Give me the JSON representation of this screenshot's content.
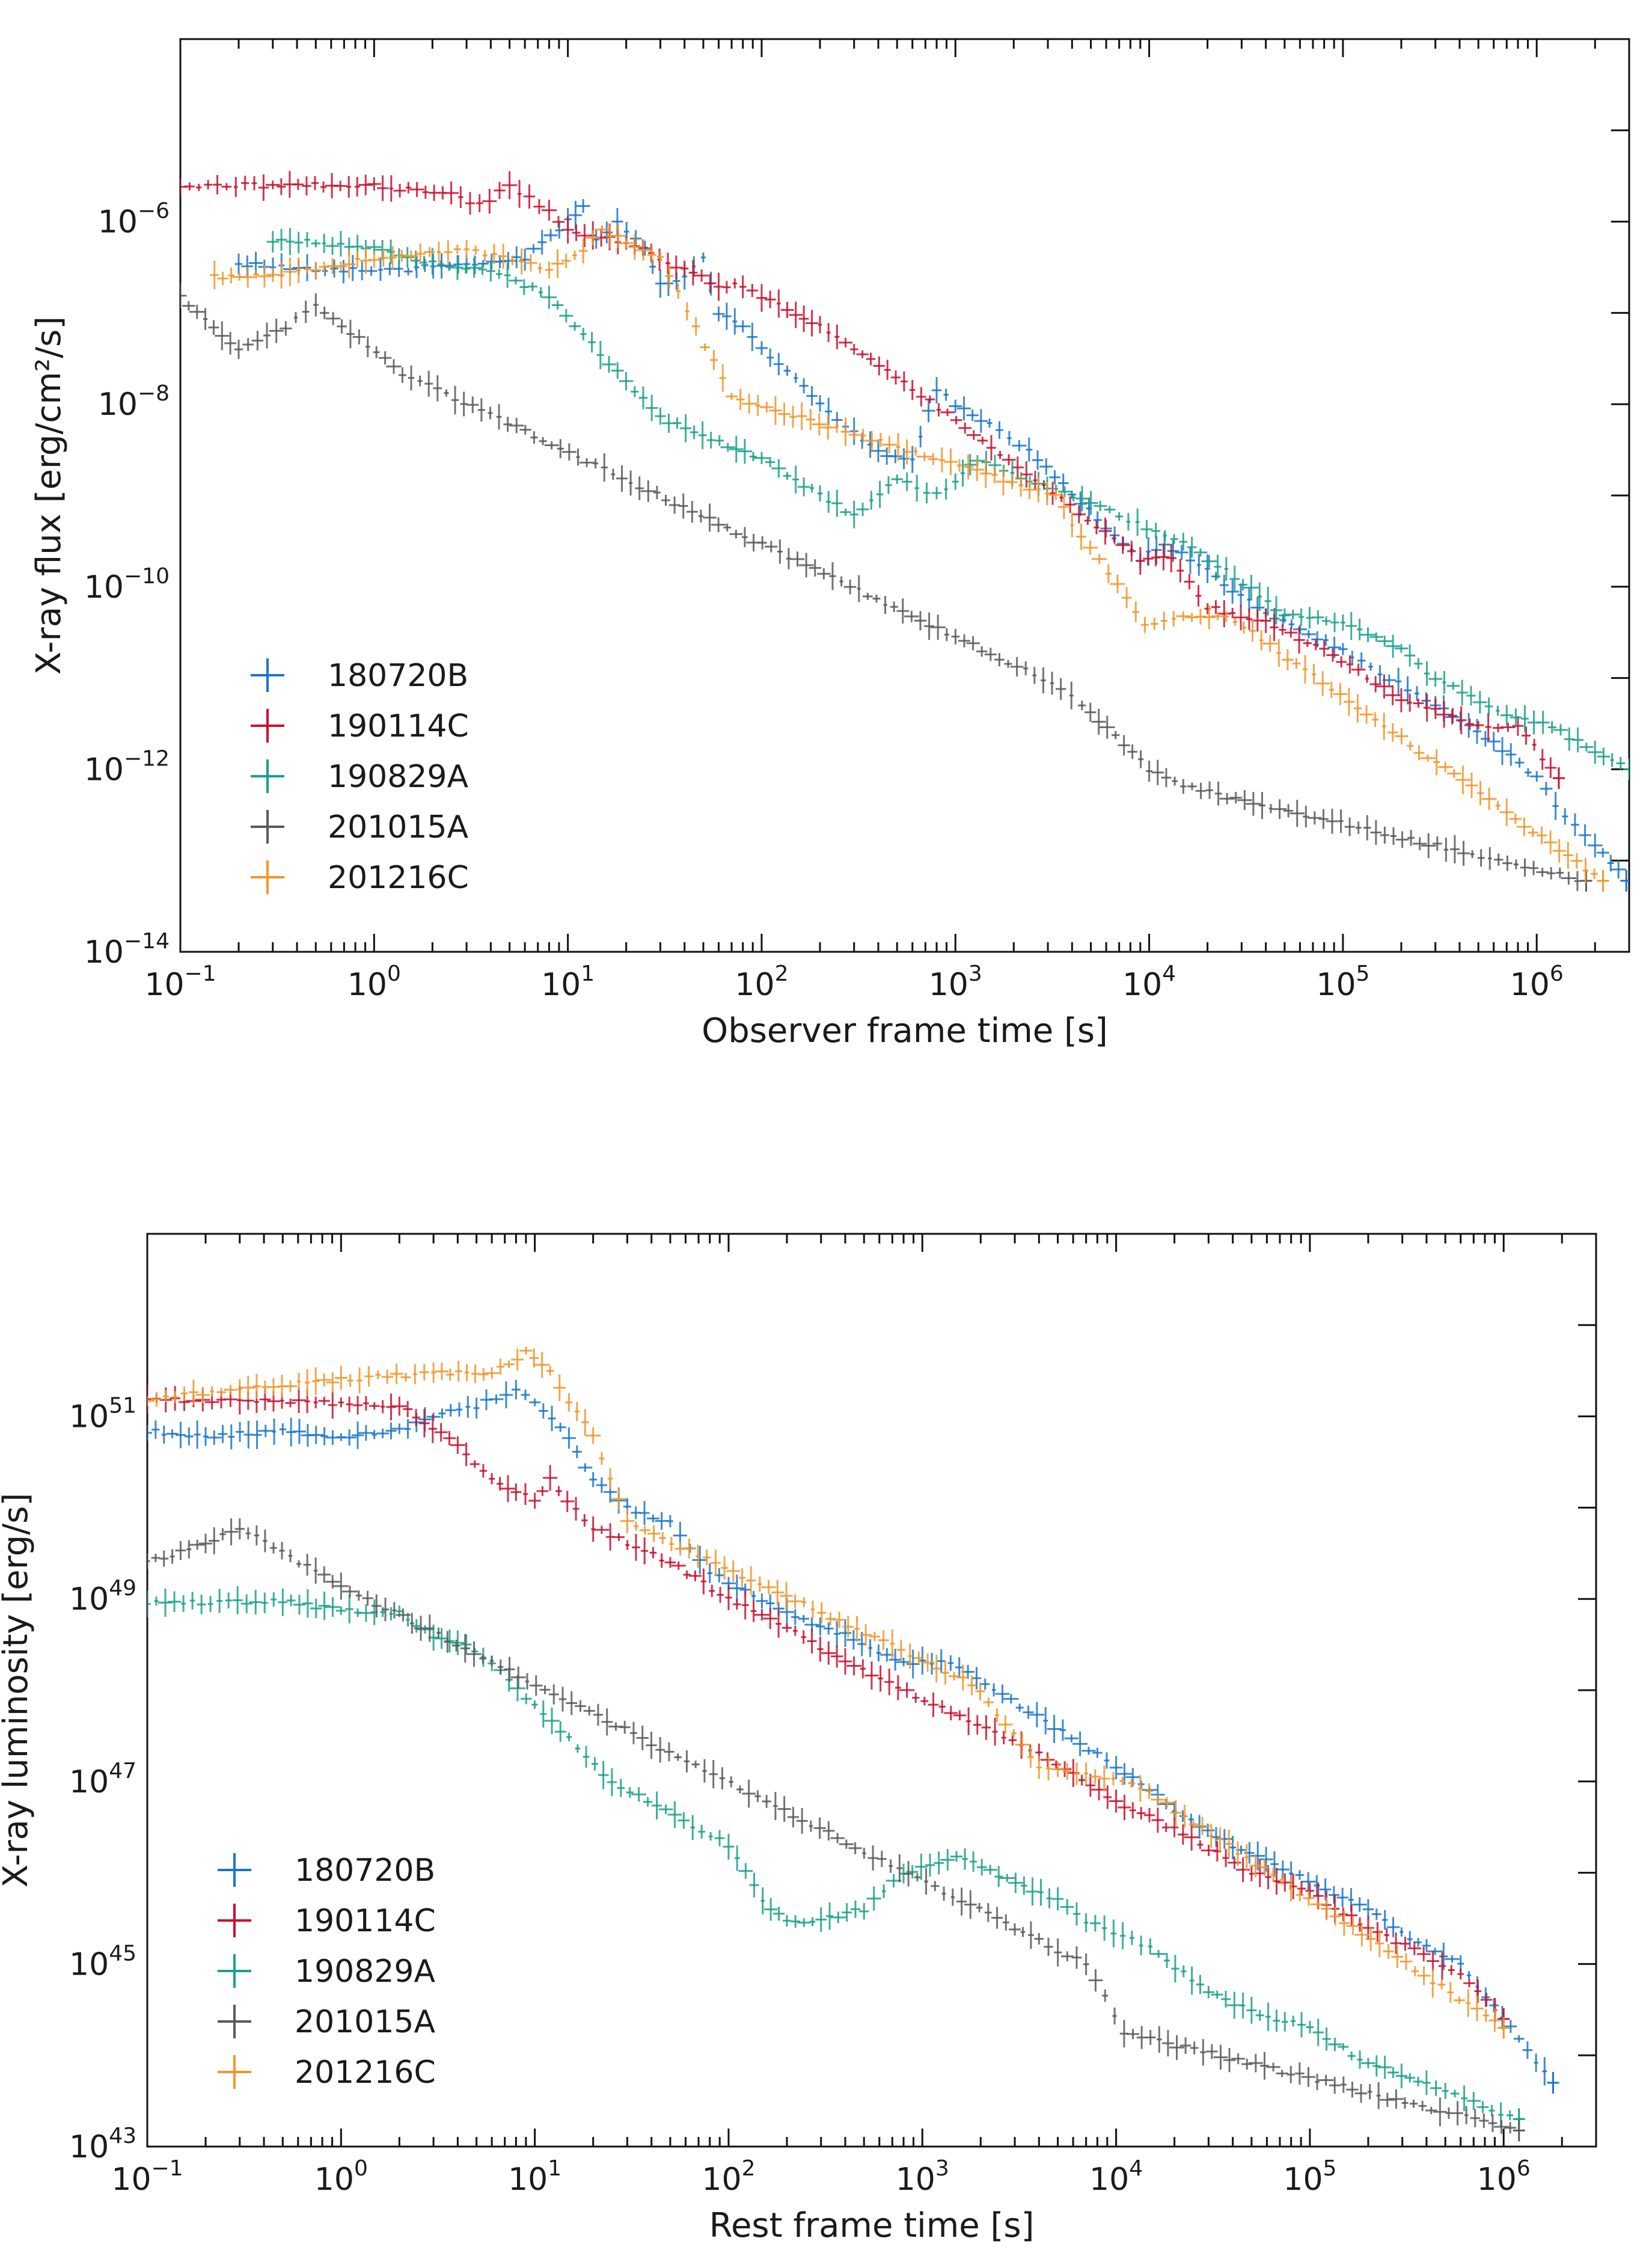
{
  "chart_data": [
    {
      "type": "scatter",
      "panel": "top",
      "xlabel": "Observer frame time [s]",
      "ylabel": "X-ray flux [erg/cm²/s]",
      "xscale": "log",
      "yscale": "log",
      "xlim": [
        0.1,
        3000000
      ],
      "ylim": [
        1e-14,
        0.0001
      ],
      "x_ticks": [
        {
          "value": 0.1,
          "base": "10",
          "exp": "−1"
        },
        {
          "value": 1,
          "base": "10",
          "exp": "0"
        },
        {
          "value": 10,
          "base": "10",
          "exp": "1"
        },
        {
          "value": 100,
          "base": "10",
          "exp": "2"
        },
        {
          "value": 1000,
          "base": "10",
          "exp": "3"
        },
        {
          "value": 10000,
          "base": "10",
          "exp": "4"
        },
        {
          "value": 100000,
          "base": "10",
          "exp": "5"
        },
        {
          "value": 1000000,
          "base": "10",
          "exp": "6"
        }
      ],
      "y_ticks": [
        {
          "value": 1e-06,
          "base": "10",
          "exp": "−6"
        },
        {
          "value": 1e-08,
          "base": "10",
          "exp": "−8"
        },
        {
          "value": 1e-10,
          "base": "10",
          "exp": "−10"
        },
        {
          "value": 1e-12,
          "base": "10",
          "exp": "−12"
        },
        {
          "value": 1e-14,
          "base": "10",
          "exp": "−14"
        }
      ],
      "legend": {
        "position": "bottom-left",
        "entries": [
          "180720B",
          "190114C",
          "190829A",
          "201015A",
          "201216C"
        ]
      },
      "series": [
        {
          "name": "180720B",
          "color": "#1a76c9",
          "points": [
            [
              0.2,
              3.5e-07
            ],
            [
              0.5,
              3e-07
            ],
            [
              1.5,
              3e-07
            ],
            [
              3,
              3.5e-07
            ],
            [
              6,
              4e-07
            ],
            [
              10,
              1e-06
            ],
            [
              12,
              1.5e-06
            ],
            [
              14,
              6e-07
            ],
            [
              18,
              1e-06
            ],
            [
              25,
              5e-07
            ],
            [
              30,
              2e-07
            ],
            [
              40,
              2.5e-07
            ],
            [
              50,
              4e-07
            ],
            [
              60,
              1e-07
            ],
            [
              80,
              7e-08
            ],
            [
              100,
              4e-08
            ],
            [
              150,
              2e-08
            ],
            [
              200,
              1e-08
            ],
            [
              300,
              5e-09
            ],
            [
              400,
              3e-09
            ],
            [
              600,
              2.5e-09
            ],
            [
              800,
              1.5e-08
            ],
            [
              1000,
              1e-08
            ],
            [
              1500,
              6e-09
            ],
            [
              2400,
              3e-09
            ],
            [
              9000,
              2e-10
            ],
            [
              12000,
              3e-10
            ],
            [
              20000,
              1.5e-10
            ],
            [
              40000,
              5e-11
            ],
            [
              100000,
              2e-11
            ],
            [
              300000,
              5e-12
            ],
            [
              600000,
              2e-12
            ],
            [
              1000000,
              8e-13
            ],
            [
              1400000,
              3e-13
            ],
            [
              2000000,
              1.5e-13
            ],
            [
              2900000,
              6e-14
            ]
          ]
        },
        {
          "name": "190114C",
          "color": "#c8102e",
          "points": [
            [
              0.1,
              2.5e-06
            ],
            [
              0.3,
              2.5e-06
            ],
            [
              1,
              2.5e-06
            ],
            [
              2.5,
              2e-06
            ],
            [
              3.5,
              1.5e-06
            ],
            [
              5,
              2.5e-06
            ],
            [
              8,
              1.3e-06
            ],
            [
              10,
              8e-07
            ],
            [
              20,
              6e-07
            ],
            [
              40,
              3e-07
            ],
            [
              60,
              2e-07
            ],
            [
              80,
              2e-07
            ],
            [
              100,
              1.5e-07
            ],
            [
              150,
              1e-07
            ],
            [
              200,
              7e-08
            ],
            [
              300,
              4e-08
            ],
            [
              600,
              1.5e-08
            ],
            [
              9000,
              2e-10
            ],
            [
              13000,
              2e-10
            ],
            [
              20000,
              6e-11
            ],
            [
              40000,
              4e-11
            ],
            [
              80000,
              2e-11
            ],
            [
              200000,
              6e-12
            ],
            [
              500000,
              3e-12
            ],
            [
              800000,
              3e-12
            ],
            [
              1300000,
              8e-13
            ]
          ]
        },
        {
          "name": "190829A",
          "color": "#1aa08a",
          "points": [
            [
              0.3,
              6e-07
            ],
            [
              0.5,
              6e-07
            ],
            [
              1,
              5e-07
            ],
            [
              2,
              3.5e-07
            ],
            [
              4,
              3e-07
            ],
            [
              8,
              1.5e-07
            ],
            [
              30,
              7e-09
            ],
            [
              100,
              2.5e-09
            ],
            [
              150,
              1.5e-09
            ],
            [
              200,
              1e-09
            ],
            [
              300,
              6e-10
            ],
            [
              500,
              1.5e-09
            ],
            [
              800,
              1e-09
            ],
            [
              1000,
              1.5e-09
            ],
            [
              1300,
              2.5e-09
            ],
            [
              5000,
              8e-10
            ],
            [
              7000,
              6e-10
            ],
            [
              15000,
              3e-10
            ],
            [
              25000,
              1.5e-10
            ],
            [
              50000,
              5e-11
            ],
            [
              100000,
              4e-11
            ],
            [
              200000,
              2e-11
            ],
            [
              300000,
              1e-11
            ],
            [
              700000,
              4e-12
            ],
            [
              1200000,
              3e-12
            ],
            [
              2000000,
              1.5e-12
            ],
            [
              3000000,
              1e-12
            ]
          ]
        },
        {
          "name": "201015A",
          "color": "#5a5a5a",
          "points": [
            [
              0.1,
              1.5e-07
            ],
            [
              0.2,
              4e-08
            ],
            [
              0.35,
              7e-08
            ],
            [
              0.5,
              1.2e-07
            ],
            [
              1.4,
              2.2e-08
            ],
            [
              3500,
              8e-12
            ],
            [
              4500,
              5e-12
            ],
            [
              10000,
              1e-12
            ],
            [
              15000,
              6.5e-13
            ],
            [
              1800000,
              6e-14
            ]
          ]
        },
        {
          "name": "201216C",
          "color": "#f0962a",
          "points": [
            [
              0.15,
              2.5e-07
            ],
            [
              0.3,
              2.5e-07
            ],
            [
              0.5,
              3e-07
            ],
            [
              1,
              4e-07
            ],
            [
              3,
              5e-07
            ],
            [
              8,
              3e-07
            ],
            [
              12,
              5e-07
            ],
            [
              15,
              8e-07
            ],
            [
              20,
              6e-07
            ],
            [
              30,
              4e-07
            ],
            [
              70,
              1.2e-08
            ],
            [
              3300,
              1e-09
            ],
            [
              4000,
              5e-10
            ],
            [
              9500,
              4e-11
            ],
            [
              15000,
              4.5e-11
            ],
            [
              25000,
              5e-11
            ],
            [
              2200000,
              6e-14
            ]
          ]
        }
      ]
    },
    {
      "type": "scatter",
      "panel": "bottom",
      "xlabel": "Rest frame time [s]",
      "ylabel": "X-ray luminosity [erg/s]",
      "xscale": "log",
      "yscale": "log",
      "xlim": [
        0.1,
        3000000
      ],
      "ylim": [
        1e+43,
        1e+53
      ],
      "x_ticks": [
        {
          "value": 0.1,
          "base": "10",
          "exp": "−1"
        },
        {
          "value": 1,
          "base": "10",
          "exp": "0"
        },
        {
          "value": 10,
          "base": "10",
          "exp": "1"
        },
        {
          "value": 100,
          "base": "10",
          "exp": "2"
        },
        {
          "value": 1000,
          "base": "10",
          "exp": "3"
        },
        {
          "value": 10000,
          "base": "10",
          "exp": "4"
        },
        {
          "value": 100000,
          "base": "10",
          "exp": "5"
        },
        {
          "value": 1000000,
          "base": "10",
          "exp": "6"
        }
      ],
      "y_ticks": [
        {
          "value": 1e+51,
          "base": "10",
          "exp": "51"
        },
        {
          "value": 1e+49,
          "base": "10",
          "exp": "49"
        },
        {
          "value": 1e+47,
          "base": "10",
          "exp": "47"
        },
        {
          "value": 1e+45,
          "base": "10",
          "exp": "45"
        },
        {
          "value": 1e+43,
          "base": "10",
          "exp": "43"
        }
      ],
      "legend": {
        "position": "bottom-left",
        "entries": [
          "180720B",
          "190114C",
          "190829A",
          "201015A",
          "201216C"
        ]
      },
      "series": [
        {
          "name": "180720B",
          "color": "#1a76c9",
          "points": [
            [
              0.1,
              7e+50
            ],
            [
              0.2,
              6e+50
            ],
            [
              0.5,
              7e+50
            ],
            [
              1,
              6e+50
            ],
            [
              2,
              7e+50
            ],
            [
              3,
              1e+51
            ],
            [
              5,
              1.3e+51
            ],
            [
              8,
              2e+51
            ],
            [
              10,
              1.5e+51
            ],
            [
              15,
              6e+50
            ],
            [
              20,
              2e+50
            ],
            [
              30,
              1e+50
            ],
            [
              50,
              7e+49
            ],
            [
              80,
              2e+49
            ],
            [
              100,
              1.5e+49
            ],
            [
              200,
              7e+48
            ],
            [
              400,
              4e+48
            ],
            [
              800,
              2e+48
            ],
            [
              1400,
              2e+48
            ],
            [
              8000,
              2e+47
            ],
            [
              10000,
              1.5e+47
            ],
            [
              20000,
              5e+46
            ],
            [
              40000,
              2e+46
            ],
            [
              80000,
              1e+46
            ],
            [
              200000,
              4e+45
            ],
            [
              400000,
              1.5e+45
            ],
            [
              600000,
              1e+45
            ],
            [
              1200000,
              1.5e+44
            ],
            [
              1800000,
              5e+43
            ]
          ]
        },
        {
          "name": "190114C",
          "color": "#c8102e",
          "points": [
            [
              0.1,
              1.5e+51
            ],
            [
              0.3,
              1.5e+51
            ],
            [
              1,
              1.4e+51
            ],
            [
              2,
              1.3e+51
            ],
            [
              4,
              5e+50
            ],
            [
              6,
              2e+50
            ],
            [
              8,
              1.5e+50
            ],
            [
              10,
              1.2e+50
            ],
            [
              12,
              2e+50
            ],
            [
              20,
              6e+49
            ],
            [
              50,
              2.5e+49
            ],
            [
              100,
              1e+49
            ],
            [
              200,
              5e+48
            ],
            [
              400,
              2e+48
            ],
            [
              4000,
              2e+47
            ],
            [
              10000,
              6e+46
            ],
            [
              20000,
              3e+46
            ],
            [
              50000,
              1e+46
            ],
            [
              100000,
              6e+45
            ],
            [
              200000,
              2.5e+45
            ],
            [
              600000,
              8e+44
            ],
            [
              1000000,
              2.5e+44
            ]
          ]
        },
        {
          "name": "190829A",
          "color": "#1aa08a",
          "points": [
            [
              0.1,
              9e+48
            ],
            [
              0.5,
              9.5e+48
            ],
            [
              1,
              7.5e+48
            ],
            [
              2,
              7e+48
            ],
            [
              3,
              4e+48
            ],
            [
              4,
              3.5e+48
            ],
            [
              6,
              2e+48
            ],
            [
              25,
              1e+47
            ],
            [
              100,
              2e+46
            ],
            [
              150,
              5e+45
            ],
            [
              200,
              3e+45
            ],
            [
              300,
              3e+45
            ],
            [
              500,
              4e+45
            ],
            [
              800,
              1e+46
            ],
            [
              1500,
              1.5e+46
            ],
            [
              5000,
              5e+45
            ],
            [
              7000,
              3e+45
            ],
            [
              15000,
              1.5e+45
            ],
            [
              30000,
              5e+44
            ],
            [
              50000,
              3e+44
            ],
            [
              100000,
              2e+44
            ],
            [
              200000,
              8e+43
            ],
            [
              400000,
              5e+43
            ],
            [
              700000,
              3e+43
            ],
            [
              1200000,
              2e+43
            ]
          ]
        },
        {
          "name": "201015A",
          "color": "#5a5a5a",
          "points": [
            [
              0.1,
              2.5e+49
            ],
            [
              0.2,
              4e+49
            ],
            [
              0.3,
              6e+49
            ],
            [
              1,
              1.4e+49
            ],
            [
              3000,
              2.5e+45
            ],
            [
              4000,
              1.8e+45
            ],
            [
              7000,
              1e+45
            ],
            [
              11000,
              1.8e+44
            ],
            [
              1200000,
              1.5e+43
            ]
          ]
        },
        {
          "name": "201216C",
          "color": "#f0962a",
          "points": [
            [
              0.1,
              1.5e+51
            ],
            [
              0.3,
              2e+51
            ],
            [
              1,
              2.5e+51
            ],
            [
              3,
              3e+51
            ],
            [
              6,
              3e+51
            ],
            [
              9,
              5e+51
            ],
            [
              12,
              3e+51
            ],
            [
              15,
              1.5e+51
            ],
            [
              20,
              6e+50
            ],
            [
              30,
              7e+49
            ],
            [
              1800,
              1.2e+48
            ],
            [
              4000,
              1.5e+47
            ],
            [
              7000,
              1.2e+47
            ],
            [
              12000,
              1e+47
            ],
            [
              1000000,
              2e+44
            ]
          ]
        }
      ]
    }
  ]
}
